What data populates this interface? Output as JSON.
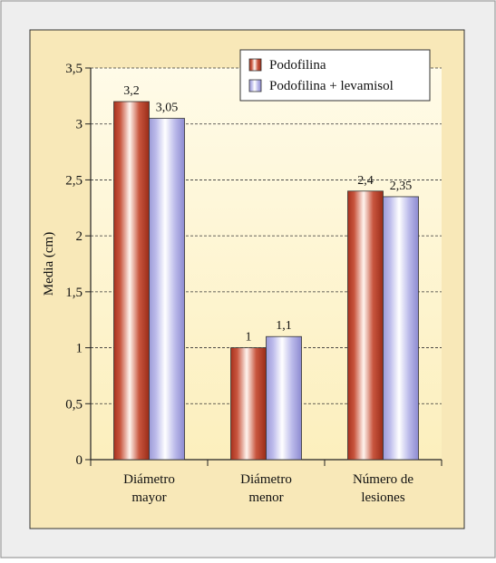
{
  "colors": {
    "frame_bg": "#eeeeee",
    "panel_bg": "#f8e8b8",
    "plot_bg_top": "#fffbe6",
    "plot_bg_bottom": "#fdf0bb",
    "series1": "#c0452f",
    "series2": "#b9b8e8"
  },
  "chart_data": {
    "type": "bar",
    "title": "",
    "xlabel": "",
    "ylabel": "Media (cm)",
    "ylim": [
      0,
      3.5
    ],
    "grid": true,
    "legend_position": "top-right",
    "categories": [
      [
        "Diámetro",
        "mayor"
      ],
      [
        "Diámetro",
        "menor"
      ],
      [
        "Número de",
        "lesiones"
      ]
    ],
    "y_ticks": [
      {
        "value": 0,
        "label": "0"
      },
      {
        "value": 0.5,
        "label": "0,5"
      },
      {
        "value": 1,
        "label": "1"
      },
      {
        "value": 1.5,
        "label": "1,5"
      },
      {
        "value": 2,
        "label": "2"
      },
      {
        "value": 2.5,
        "label": "2,5"
      },
      {
        "value": 3,
        "label": "3"
      },
      {
        "value": 3.5,
        "label": "3,5"
      }
    ],
    "series": [
      {
        "name": "Podofilina",
        "values": [
          3.2,
          1,
          2.4
        ],
        "labels": [
          "3,2",
          "1",
          "2,4"
        ]
      },
      {
        "name": "Podofilina + levamisol",
        "values": [
          3.05,
          1.1,
          2.35
        ],
        "labels": [
          "3,05",
          "1,1",
          "2,35"
        ]
      }
    ]
  }
}
